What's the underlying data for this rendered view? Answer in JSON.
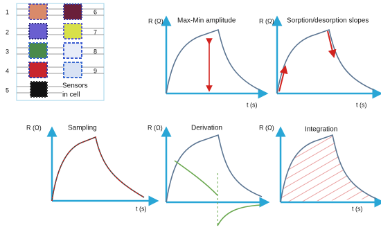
{
  "sensor_cell": {
    "labels": [
      "1",
      "2",
      "3",
      "4",
      "5",
      "6",
      "7",
      "8",
      "9"
    ],
    "caption_lines": [
      "Sensors",
      "in cell"
    ]
  },
  "panels": [
    {
      "title": "Max-Min amplitude",
      "y_label": "R (Ω)",
      "x_label": "t (s)"
    },
    {
      "title": "Sorption/desorption slopes",
      "y_label": "R (Ω)",
      "x_label": "t (s)"
    },
    {
      "title": "Sampling",
      "y_label": "R (Ω)",
      "x_label": "t (s)"
    },
    {
      "title": "Derivation",
      "y_label": "R (Ω)"
    },
    {
      "title": "Integration",
      "y_label": "R (Ω)",
      "x_label": "t (s)"
    }
  ]
}
